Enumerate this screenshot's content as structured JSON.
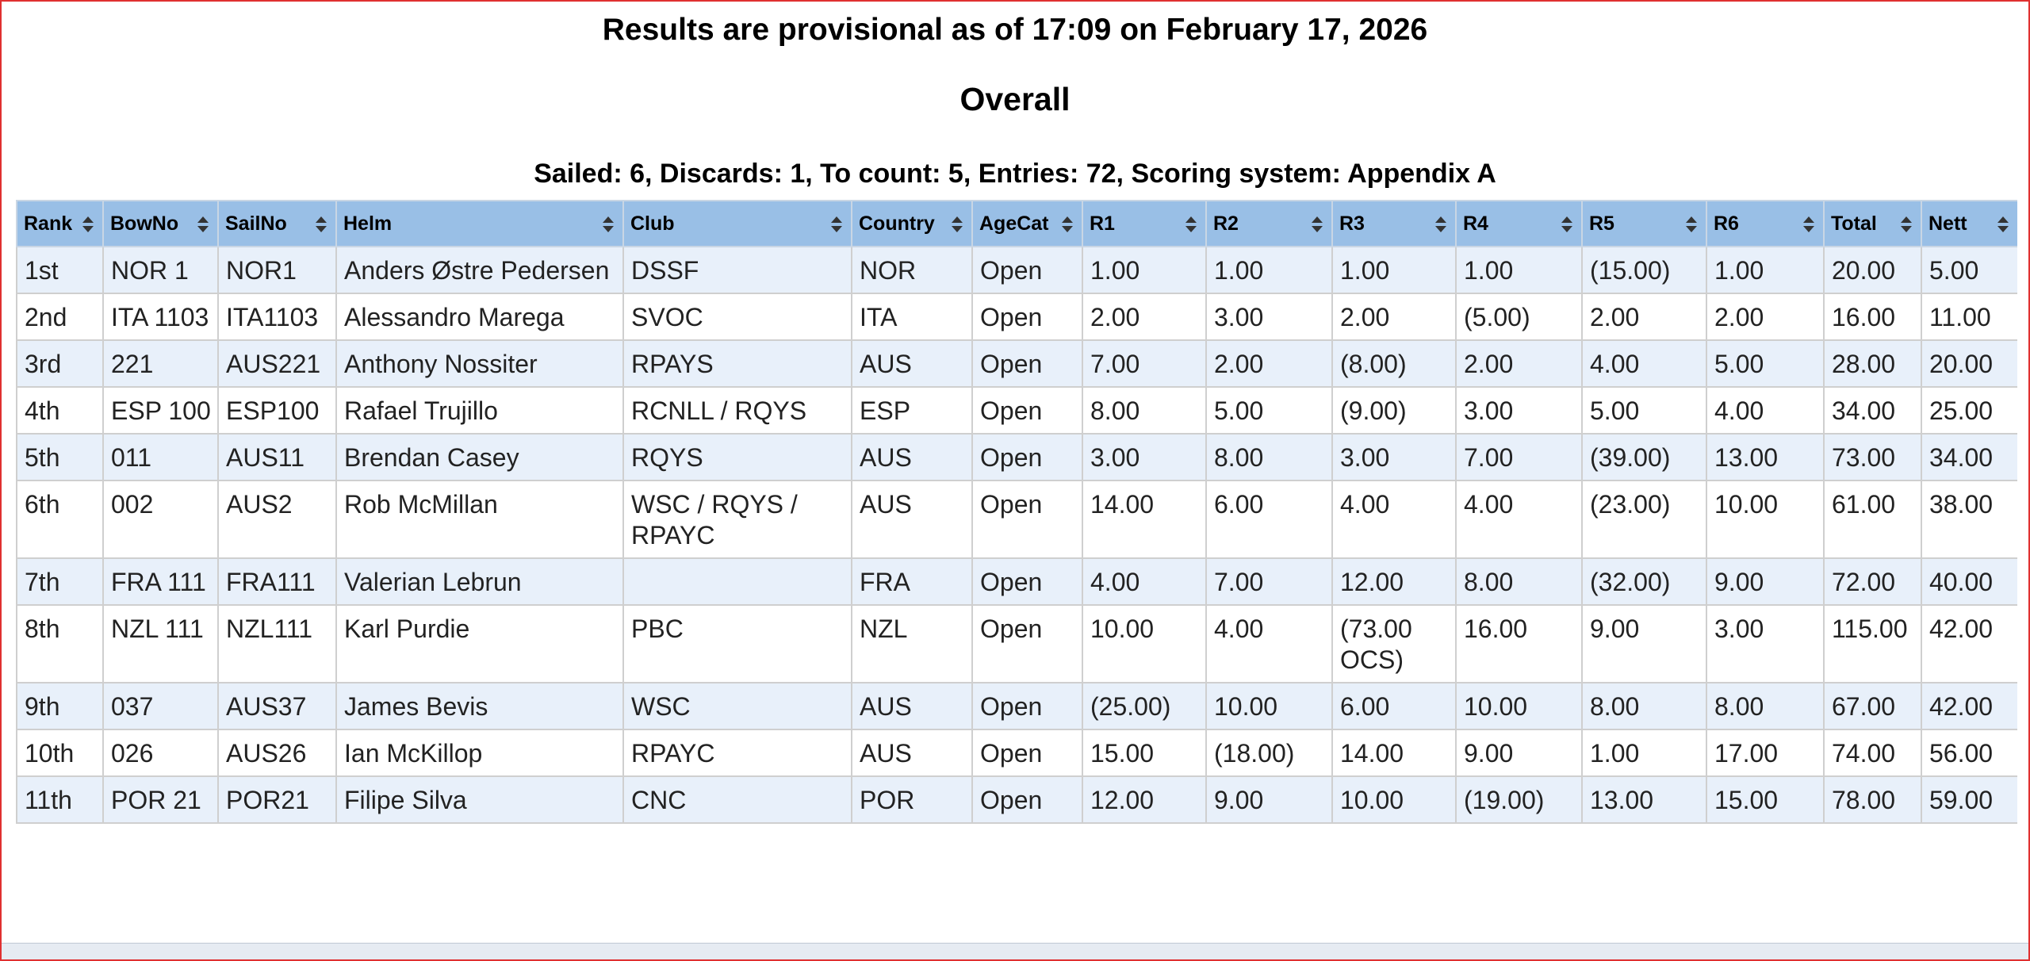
{
  "header": {
    "title": "Results are provisional as of 17:09 on February 17, 2026",
    "heading": "Overall",
    "summary": "Sailed: 6, Discards: 1, To count: 5, Entries: 72, Scoring system: Appendix A"
  },
  "table": {
    "columns": [
      "Rank",
      "BowNo",
      "SailNo",
      "Helm",
      "Club",
      "Country",
      "AgeCat",
      "R1",
      "R2",
      "R3",
      "R4",
      "R5",
      "R6",
      "Total",
      "Nett"
    ],
    "rows": [
      [
        "1st",
        "NOR 1",
        "NOR1",
        "Anders Østre Pedersen",
        "DSSF",
        "NOR",
        "Open",
        "1.00",
        "1.00",
        "1.00",
        "1.00",
        "(15.00)",
        "1.00",
        "20.00",
        "5.00"
      ],
      [
        "2nd",
        "ITA 1103",
        "ITA1103",
        "Alessandro Marega",
        "SVOC",
        "ITA",
        "Open",
        "2.00",
        "3.00",
        "2.00",
        "(5.00)",
        "2.00",
        "2.00",
        "16.00",
        "11.00"
      ],
      [
        "3rd",
        "221",
        "AUS221",
        "Anthony Nossiter",
        "RPAYS",
        "AUS",
        "Open",
        "7.00",
        "2.00",
        "(8.00)",
        "2.00",
        "4.00",
        "5.00",
        "28.00",
        "20.00"
      ],
      [
        "4th",
        "ESP 100",
        "ESP100",
        "Rafael Trujillo",
        "RCNLL / RQYS",
        "ESP",
        "Open",
        "8.00",
        "5.00",
        "(9.00)",
        "3.00",
        "5.00",
        "4.00",
        "34.00",
        "25.00"
      ],
      [
        "5th",
        "011",
        "AUS11",
        "Brendan Casey",
        "RQYS",
        "AUS",
        "Open",
        "3.00",
        "8.00",
        "3.00",
        "7.00",
        "(39.00)",
        "13.00",
        "73.00",
        "34.00"
      ],
      [
        "6th",
        "002",
        "AUS2",
        "Rob McMillan",
        "WSC / RQYS / RPAYC",
        "AUS",
        "Open",
        "14.00",
        "6.00",
        "4.00",
        "4.00",
        "(23.00)",
        "10.00",
        "61.00",
        "38.00"
      ],
      [
        "7th",
        "FRA 111",
        "FRA111",
        "Valerian Lebrun",
        "",
        "FRA",
        "Open",
        "4.00",
        "7.00",
        "12.00",
        "8.00",
        "(32.00)",
        "9.00",
        "72.00",
        "40.00"
      ],
      [
        "8th",
        "NZL 111",
        "NZL111",
        "Karl Purdie",
        "PBC",
        "NZL",
        "Open",
        "10.00",
        "4.00",
        "(73.00 OCS)",
        "16.00",
        "9.00",
        "3.00",
        "115.00",
        "42.00"
      ],
      [
        "9th",
        "037",
        "AUS37",
        "James Bevis",
        "WSC",
        "AUS",
        "Open",
        "(25.00)",
        "10.00",
        "6.00",
        "10.00",
        "8.00",
        "8.00",
        "67.00",
        "42.00"
      ],
      [
        "10th",
        "026",
        "AUS26",
        "Ian McKillop",
        "RPAYC",
        "AUS",
        "Open",
        "15.00",
        "(18.00)",
        "14.00",
        "9.00",
        "1.00",
        "17.00",
        "74.00",
        "56.00"
      ],
      [
        "11th",
        "POR 21",
        "POR21",
        "Filipe Silva",
        "CNC",
        "POR",
        "Open",
        "12.00",
        "9.00",
        "10.00",
        "(19.00)",
        "13.00",
        "15.00",
        "78.00",
        "59.00"
      ]
    ]
  }
}
